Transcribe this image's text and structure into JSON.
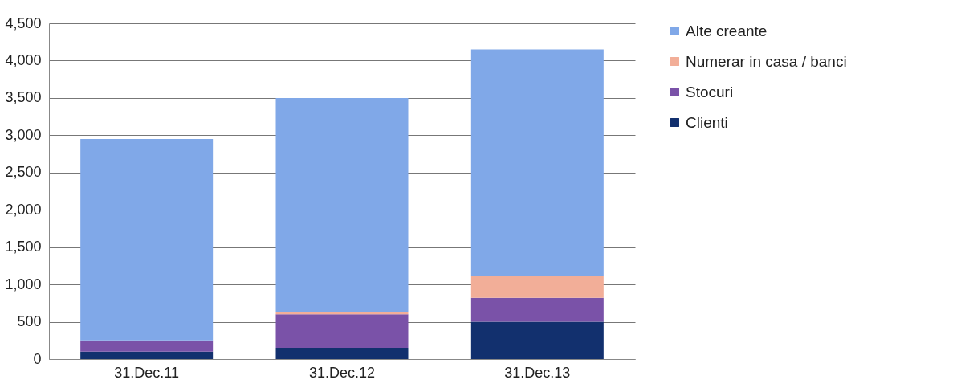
{
  "chart_data": {
    "type": "bar",
    "stacked": true,
    "categories": [
      "31.Dec.11",
      "31.Dec.12",
      "31.Dec.13"
    ],
    "series": [
      {
        "name": "Clienti",
        "color": "#12306e",
        "values": [
          100,
          150,
          500
        ]
      },
      {
        "name": "Stocuri",
        "color": "#7a52a8",
        "values": [
          150,
          450,
          320
        ]
      },
      {
        "name": "Numerar in casa / banci",
        "color": "#f2ae98",
        "values": [
          0,
          30,
          300
        ]
      },
      {
        "name": "Alte creante",
        "color": "#80a8e8",
        "values": [
          2700,
          2870,
          3030
        ]
      }
    ],
    "ylim": [
      0,
      4500
    ],
    "yticks": [
      0,
      {
        "value": 500,
        "label": "500"
      },
      {
        "value": 1000,
        "label": "1,000"
      },
      {
        "value": 1500,
        "label": "1,500"
      },
      {
        "value": 2000,
        "label": "2,000"
      },
      {
        "value": 2500,
        "label": "2,500"
      },
      {
        "value": 3000,
        "label": "3,000"
      },
      {
        "value": 3500,
        "label": "3,500"
      },
      {
        "value": 4000,
        "label": "4,000"
      },
      {
        "value": 4500,
        "label": "4,500"
      }
    ],
    "grid": "y",
    "legend": "right"
  }
}
